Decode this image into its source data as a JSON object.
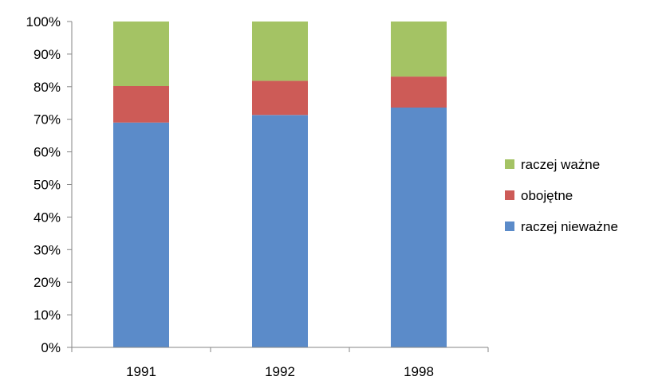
{
  "chart_data": {
    "type": "bar",
    "stacked": true,
    "percent": true,
    "title": "",
    "xlabel": "",
    "ylabel": "",
    "ylim": [
      0,
      100
    ],
    "y_ticks": [
      "0%",
      "10%",
      "20%",
      "30%",
      "40%",
      "50%",
      "60%",
      "70%",
      "80%",
      "90%",
      "100%"
    ],
    "categories": [
      "1991",
      "1992",
      "1998"
    ],
    "series": [
      {
        "name": "raczej nieważne",
        "color": "#5B8BC9",
        "values": [
          69,
          71.3,
          73.6
        ]
      },
      {
        "name": "obojętne",
        "color": "#CD5B57",
        "values": [
          11.2,
          10.5,
          9.5
        ]
      },
      {
        "name": "raczej ważne",
        "color": "#A4C364",
        "values": [
          19.8,
          18.2,
          16.9
        ]
      }
    ],
    "legend": {
      "position": "right",
      "order": [
        "raczej ważne",
        "obojętne",
        "raczej nieważne"
      ]
    },
    "grid": false
  }
}
